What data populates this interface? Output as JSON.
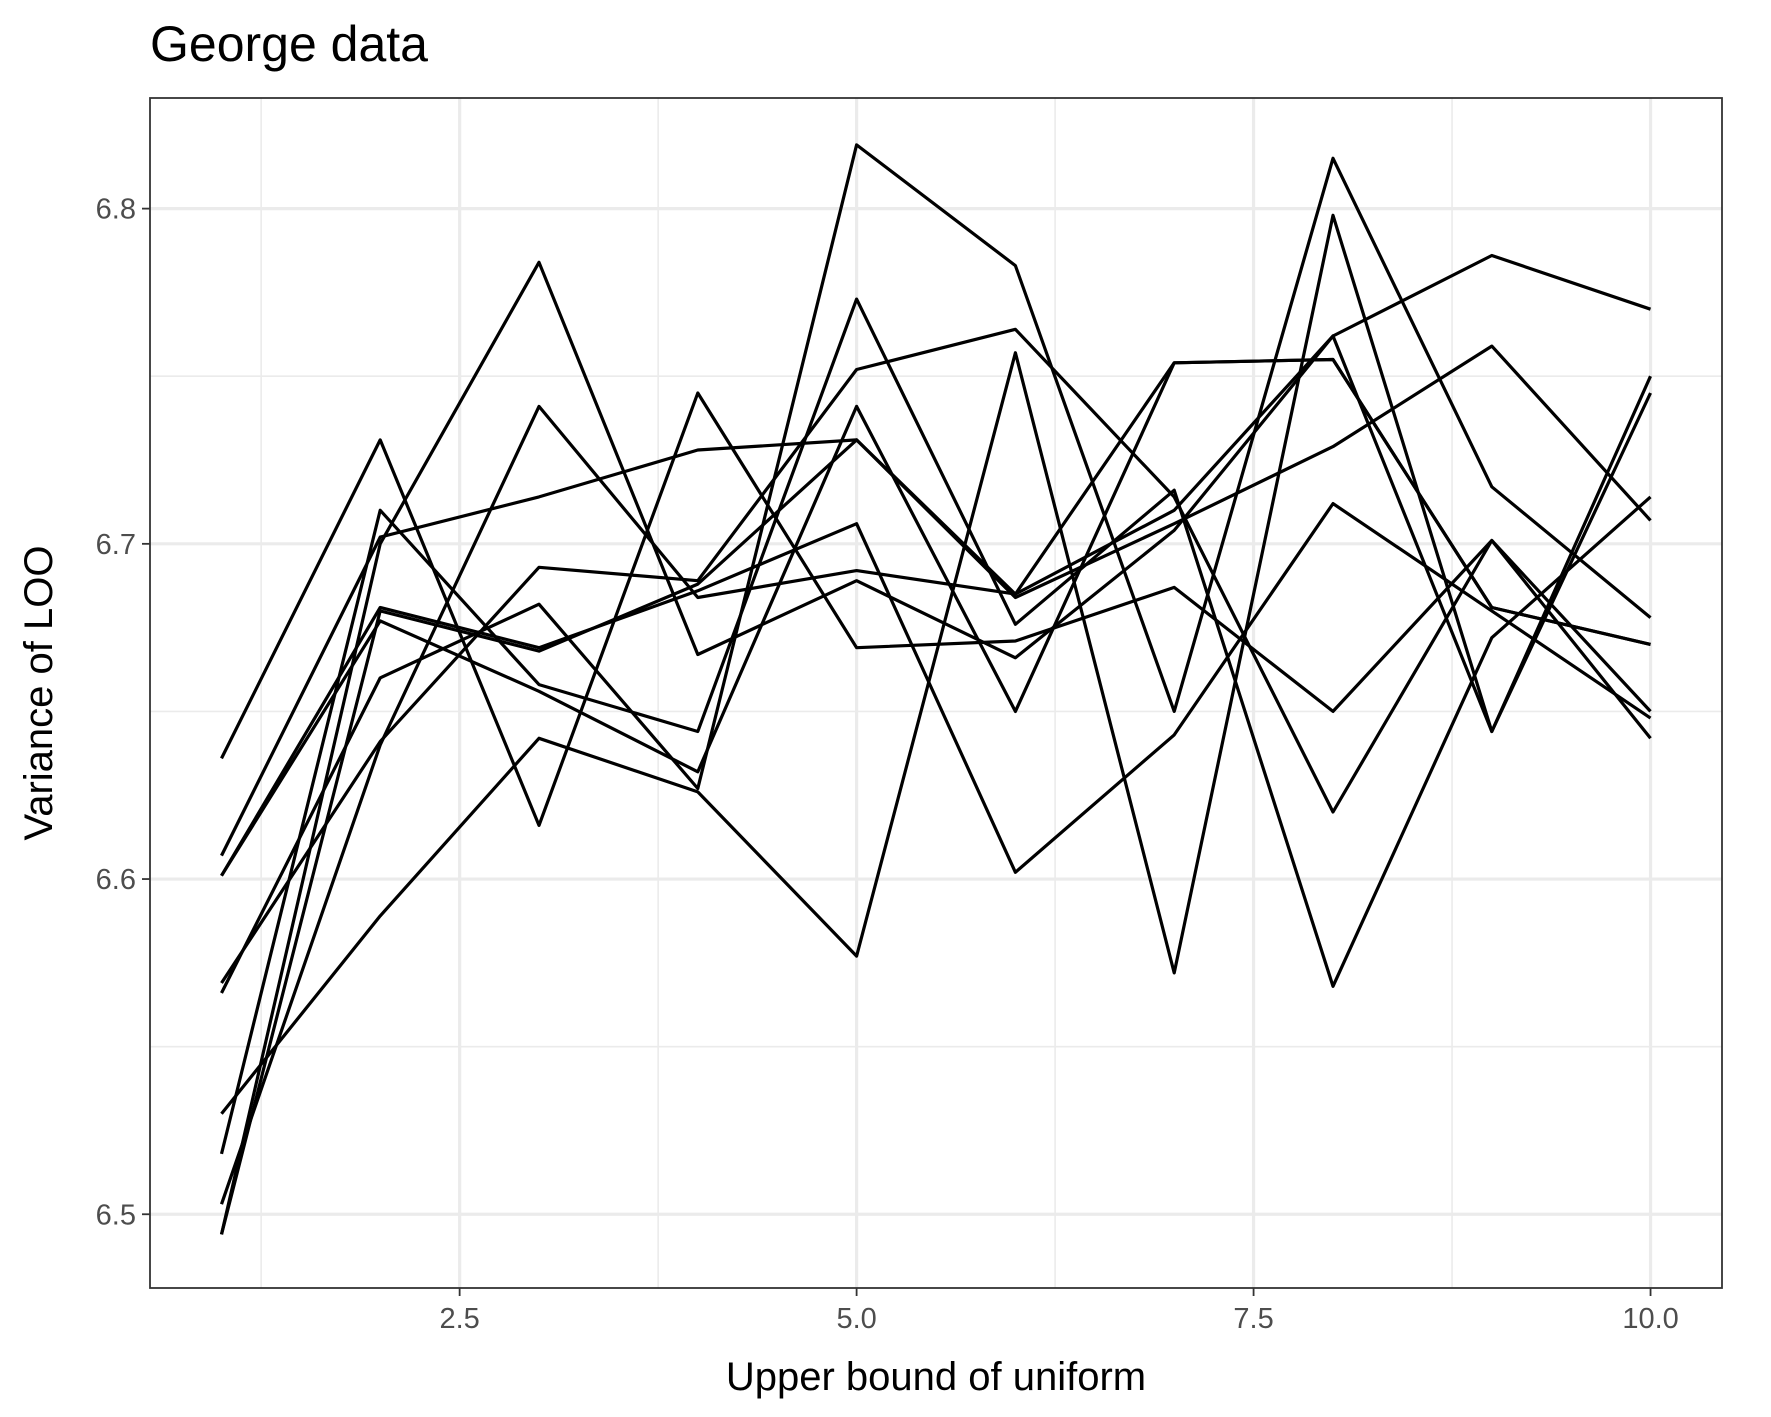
{
  "chart_data": {
    "type": "line",
    "title": "George data",
    "xlabel": "Upper bound of uniform",
    "ylabel": "Variance of LOO",
    "xlim": [
      0.55,
      10.45
    ],
    "ylim": [
      6.478,
      6.833
    ],
    "xticks": [
      2.5,
      5.0,
      7.5,
      10.0
    ],
    "xtick_labels": [
      "2.5",
      "5.0",
      "7.5",
      "10.0"
    ],
    "yticks": [
      6.5,
      6.6,
      6.7,
      6.8
    ],
    "ytick_labels": [
      "6.5",
      "6.6",
      "6.7",
      "6.8"
    ],
    "grid": true,
    "theme": "bw",
    "line_color": "#000000",
    "x": [
      1,
      2,
      3,
      4,
      5,
      6,
      7,
      8,
      9,
      10
    ],
    "series": [
      {
        "values": [
          6.636,
          6.731,
          6.616,
          6.745,
          6.669,
          6.671,
          6.687,
          6.65,
          6.701,
          6.642
        ]
      },
      {
        "values": [
          6.607,
          6.702,
          6.714,
          6.728,
          6.731,
          6.685,
          6.754,
          6.755,
          6.681,
          6.67
        ]
      },
      {
        "values": [
          6.601,
          6.677,
          6.656,
          6.632,
          6.741,
          6.65,
          6.754,
          6.755,
          6.681,
          6.67
        ]
      },
      {
        "values": [
          6.601,
          6.681,
          6.669,
          6.686,
          6.706,
          6.602,
          6.643,
          6.712,
          6.68,
          6.648
        ]
      },
      {
        "values": [
          6.569,
          6.641,
          6.693,
          6.689,
          6.752,
          6.764,
          6.714,
          6.62,
          6.701,
          6.65
        ]
      },
      {
        "values": [
          6.566,
          6.66,
          6.682,
          6.627,
          6.819,
          6.783,
          6.65,
          6.815,
          6.717,
          6.678
        ]
      },
      {
        "values": [
          6.53,
          6.589,
          6.642,
          6.626,
          6.577,
          6.757,
          6.572,
          6.798,
          6.644,
          6.75
        ]
      },
      {
        "values": [
          6.518,
          6.71,
          6.658,
          6.644,
          6.773,
          6.676,
          6.716,
          6.568,
          6.672,
          6.714
        ]
      },
      {
        "values": [
          6.503,
          6.64,
          6.741,
          6.684,
          6.692,
          6.685,
          6.71,
          6.762,
          6.644,
          6.745
        ]
      },
      {
        "values": [
          6.494,
          6.7,
          6.784,
          6.667,
          6.689,
          6.666,
          6.704,
          6.762,
          6.786,
          6.77
        ]
      },
      {
        "values": [
          6.494,
          6.68,
          6.668,
          6.688,
          6.731,
          6.684,
          6.706,
          6.729,
          6.759,
          6.707
        ]
      }
    ]
  }
}
